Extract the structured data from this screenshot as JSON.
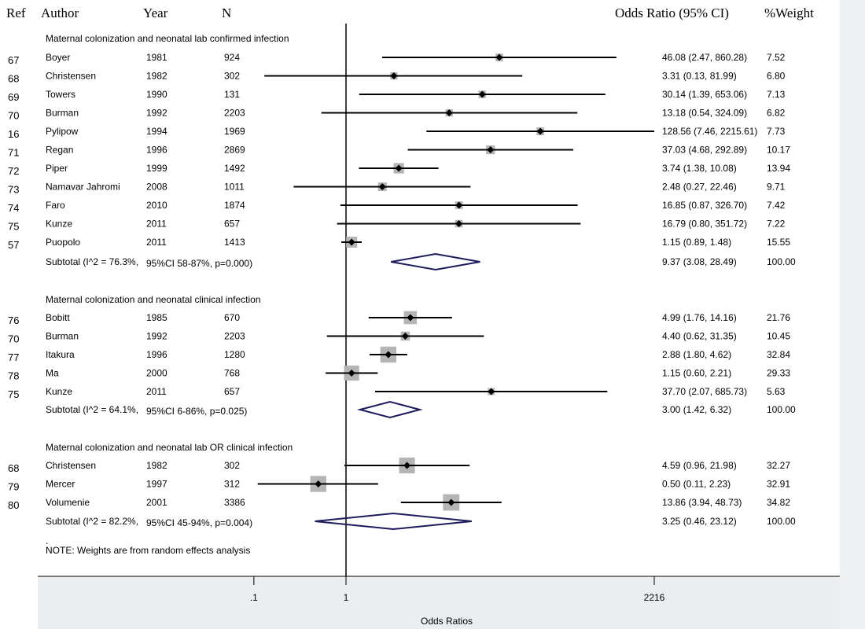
{
  "colors": {
    "box": "#b5b5b5",
    "diamond": "#1e1b5c",
    "line": "#000000"
  },
  "headers": {
    "ref": "Ref",
    "author": "Author",
    "year": "Year",
    "n": "N",
    "or": "Odds Ratio (95% CI)",
    "weight": "%Weight"
  },
  "note": "NOTE: Weights are from random effects analysis",
  "note_mark": ".",
  "chart_data": {
    "type": "forest",
    "xlabel": "Odds Ratios",
    "x_scale": "log",
    "xlim": [
      0.000451,
      2216
    ],
    "null_line": 1,
    "ticks": [
      ".1",
      "1",
      "2216"
    ],
    "tick_values": [
      0.1,
      1,
      2216
    ],
    "groups": [
      {
        "title": "Maternal colonization and neonatal lab confirmed infection",
        "studies": [
          {
            "ref": "67",
            "author": "Boyer",
            "year": "1981",
            "n": "924",
            "or": 46.08,
            "lo": 2.47,
            "hi": 860.28,
            "ci_text": "46.08 (2.47, 860.28)",
            "weight": "7.52"
          },
          {
            "ref": "68",
            "author": "Christensen",
            "year": "1982",
            "n": "302",
            "or": 3.31,
            "lo": 0.13,
            "hi": 81.99,
            "ci_text": "3.31 (0.13, 81.99)",
            "weight": "6.80"
          },
          {
            "ref": "69",
            "author": "Towers",
            "year": "1990",
            "n": "131",
            "or": 30.14,
            "lo": 1.39,
            "hi": 653.06,
            "ci_text": "30.14 (1.39, 653.06)",
            "weight": "7.13"
          },
          {
            "ref": "70",
            "author": "Burman",
            "year": "1992",
            "n": "2203",
            "or": 13.18,
            "lo": 0.54,
            "hi": 324.09,
            "ci_text": "13.18 (0.54, 324.09)",
            "weight": "6.82"
          },
          {
            "ref": "16",
            "author": "Pylipow",
            "year": "1994",
            "n": "1969",
            "or": 128.56,
            "lo": 7.46,
            "hi": 2215.61,
            "ci_text": "128.56 (7.46, 2215.61)",
            "weight": "7.73"
          },
          {
            "ref": "71",
            "author": "Regan",
            "year": "1996",
            "n": "2869",
            "or": 37.03,
            "lo": 4.68,
            "hi": 292.89,
            "ci_text": "37.03 (4.68, 292.89)",
            "weight": "10.17"
          },
          {
            "ref": "72",
            "author": "Piper",
            "year": "1999",
            "n": "1492",
            "or": 3.74,
            "lo": 1.38,
            "hi": 10.08,
            "ci_text": "3.74 (1.38, 10.08)",
            "weight": "13.94"
          },
          {
            "ref": "73",
            "author": "Namavar Jahromi",
            "year": "2008",
            "n": "1011",
            "or": 2.48,
            "lo": 0.27,
            "hi": 22.46,
            "ci_text": "2.48 (0.27, 22.46)",
            "weight": "9.71"
          },
          {
            "ref": "74",
            "author": "Faro",
            "year": "2010",
            "n": "1874",
            "or": 16.85,
            "lo": 0.87,
            "hi": 326.7,
            "ci_text": "16.85 (0.87, 326.70)",
            "weight": "7.42"
          },
          {
            "ref": "75",
            "author": "Kunze",
            "year": "2011",
            "n": "657",
            "or": 16.79,
            "lo": 0.8,
            "hi": 351.72,
            "ci_text": "16.79 (0.80, 351.72)",
            "weight": "7.22"
          },
          {
            "ref": "57",
            "author": "Puopolo",
            "year": "2011",
            "n": "1413",
            "or": 1.15,
            "lo": 0.89,
            "hi": 1.48,
            "ci_text": "1.15 (0.89, 1.48)",
            "weight": "15.55"
          }
        ],
        "subtotal": {
          "label_a": "Subtotal (I^2 = 76.3%,",
          "label_b": "95%CI 58-87%, p=0.000)",
          "or": 9.37,
          "lo": 3.08,
          "hi": 28.49,
          "ci_text": "9.37 (3.08, 28.49)",
          "weight": "100.00"
        }
      },
      {
        "title": "Maternal colonization and neonatal clinical infection",
        "studies": [
          {
            "ref": "76",
            "author": "Bobitt",
            "year": "1985",
            "n": "670",
            "or": 4.99,
            "lo": 1.76,
            "hi": 14.16,
            "ci_text": "4.99 (1.76, 14.16)",
            "weight": "21.76"
          },
          {
            "ref": "70",
            "author": "Burman",
            "year": "1992",
            "n": "2203",
            "or": 4.4,
            "lo": 0.62,
            "hi": 31.35,
            "ci_text": "4.40 (0.62, 31.35)",
            "weight": "10.45"
          },
          {
            "ref": "77",
            "author": "Itakura",
            "year": "1996",
            "n": "1280",
            "or": 2.88,
            "lo": 1.8,
            "hi": 4.62,
            "ci_text": "2.88 (1.80, 4.62)",
            "weight": "32.84"
          },
          {
            "ref": "78",
            "author": "Ma",
            "year": "2000",
            "n": "768",
            "or": 1.15,
            "lo": 0.6,
            "hi": 2.21,
            "ci_text": "1.15 (0.60, 2.21)",
            "weight": "29.33"
          },
          {
            "ref": "75",
            "author": "Kunze",
            "year": "2011",
            "n": "657",
            "or": 37.7,
            "lo": 2.07,
            "hi": 685.73,
            "ci_text": "37.70 (2.07, 685.73)",
            "weight": "5.63"
          }
        ],
        "subtotal": {
          "label_a": "Subtotal (I^2 = 64.1%,",
          "label_b": "95%CI 6-86%, p=0.025)",
          "or": 3.0,
          "lo": 1.42,
          "hi": 6.32,
          "ci_text": "3.00 (1.42, 6.32)",
          "weight": "100.00"
        }
      },
      {
        "title": "Maternal colonization and neonatal lab OR clinical infection",
        "studies": [
          {
            "ref": "68",
            "author": "Christensen",
            "year": "1982",
            "n": "302",
            "or": 4.59,
            "lo": 0.96,
            "hi": 21.98,
            "ci_text": "4.59 (0.96, 21.98)",
            "weight": "32.27"
          },
          {
            "ref": "79",
            "author": "Mercer",
            "year": "1997",
            "n": "312",
            "or": 0.5,
            "lo": 0.11,
            "hi": 2.23,
            "ci_text": "0.50 (0.11, 2.23)",
            "weight": "32.91"
          },
          {
            "ref": "80",
            "author": "Volumenie",
            "year": "2001",
            "n": "3386",
            "or": 13.86,
            "lo": 3.94,
            "hi": 48.73,
            "ci_text": "13.86 (3.94, 48.73)",
            "weight": "34.82"
          }
        ],
        "subtotal": {
          "label_a": "Subtotal (I^2 = 82.2%,",
          "label_b": "95%CI 45-94%, p=0.004)",
          "or": 3.25,
          "lo": 0.46,
          "hi": 23.12,
          "ci_text": "3.25 (0.46, 23.12)",
          "weight": "100.00"
        }
      }
    ]
  }
}
